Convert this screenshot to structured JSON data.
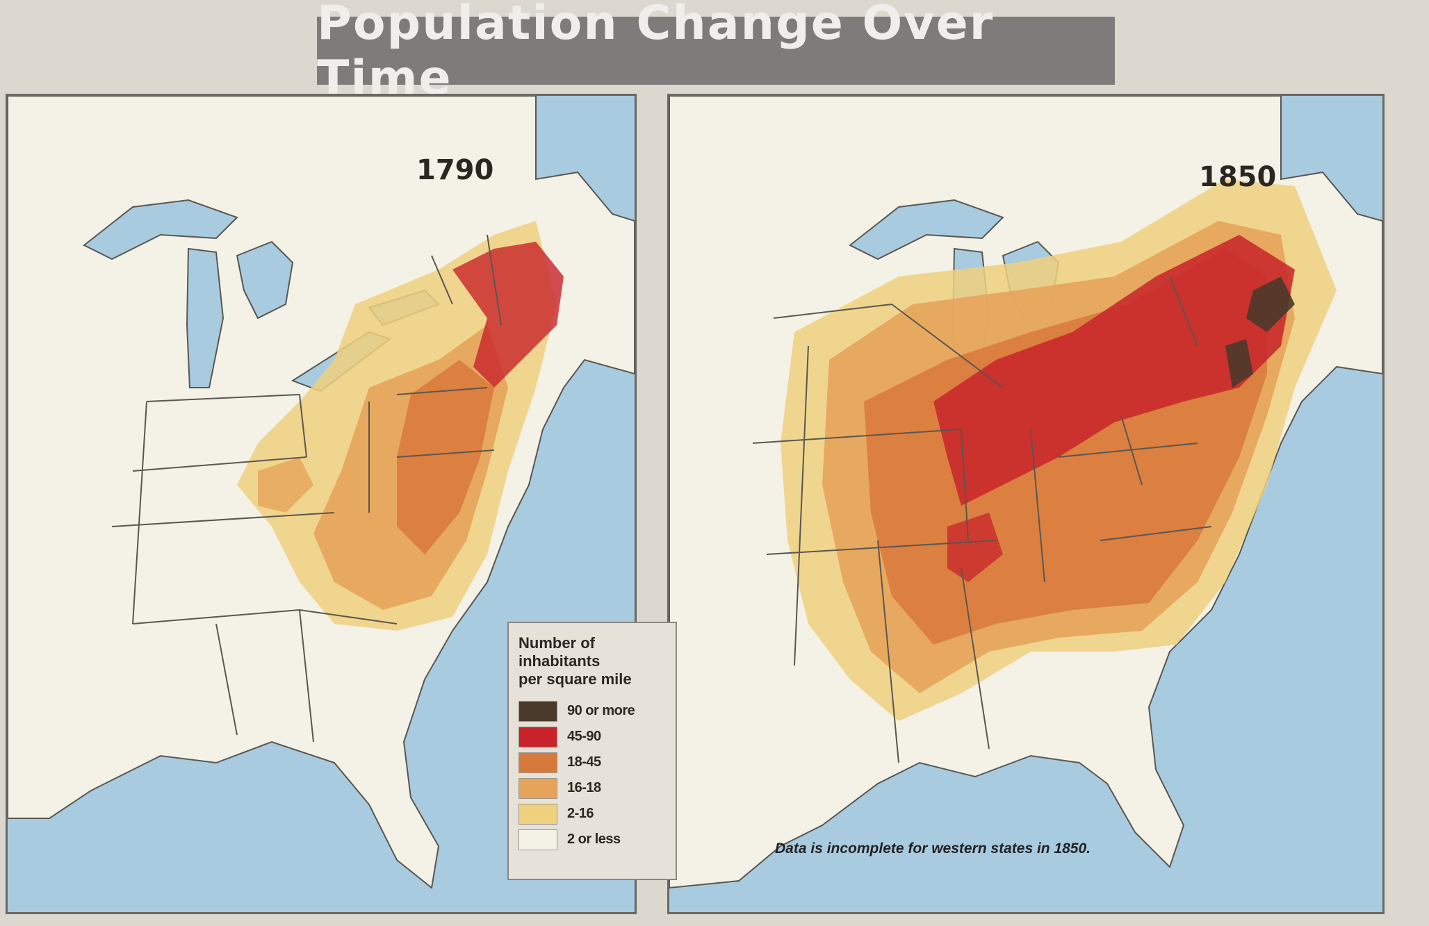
{
  "title": "Population Change Over Time",
  "maps": [
    {
      "year": "1790"
    },
    {
      "year": "1850",
      "note": "Data is incomplete for western states in 1850."
    }
  ],
  "legend": {
    "title_lines": [
      "Number of",
      "inhabitants",
      "per square mile"
    ],
    "items": [
      {
        "label": "90 or more",
        "color": "#4a3a2a"
      },
      {
        "label": "45-90",
        "color": "#c8232a"
      },
      {
        "label": "18-45",
        "color": "#d8793c"
      },
      {
        "label": "16-18",
        "color": "#e6a45a"
      },
      {
        "label": "2-16",
        "color": "#eed07e"
      },
      {
        "label": "2 or less",
        "color": "#f4f1e6"
      }
    ]
  },
  "colors": {
    "water": "#a9cbe0",
    "land": "#f4f1e6",
    "border": "#5a5650"
  }
}
